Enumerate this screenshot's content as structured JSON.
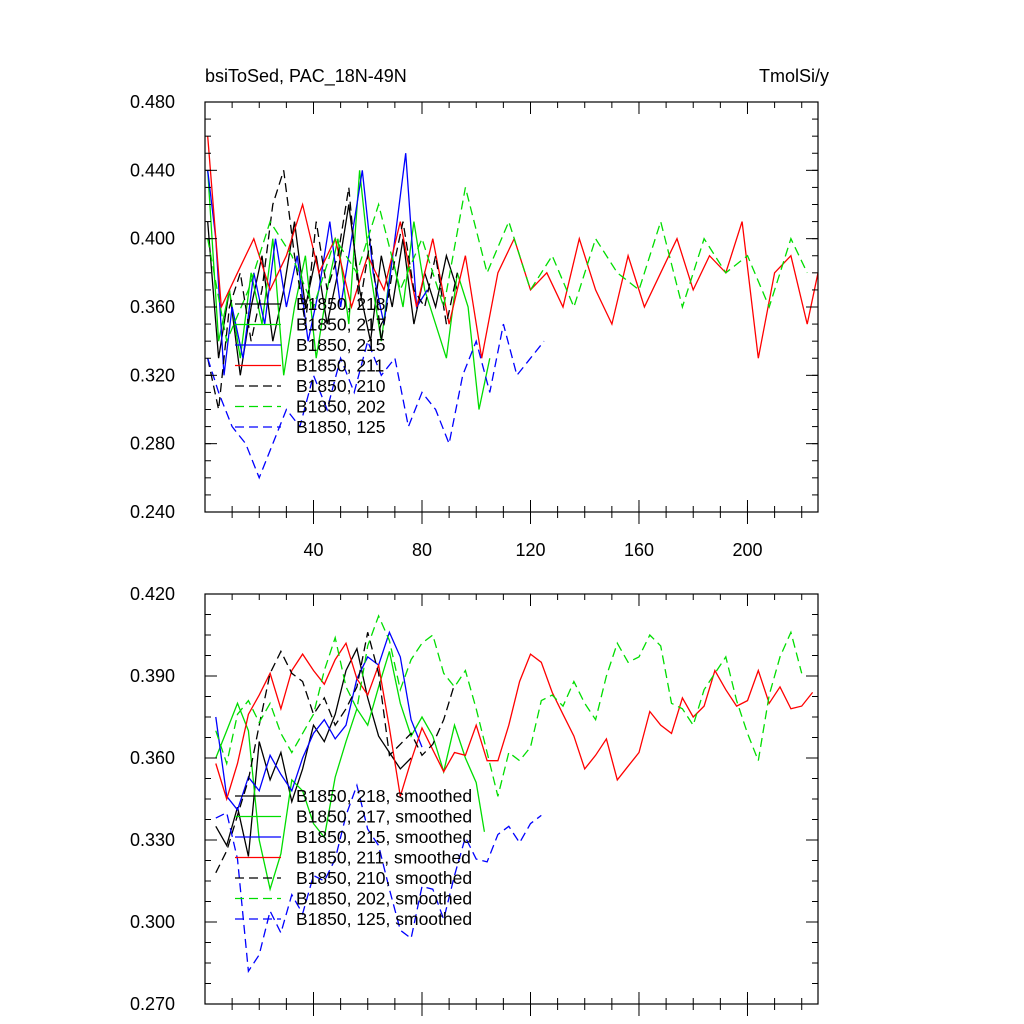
{
  "chart_data": [
    {
      "type": "line",
      "title_left": "bsiToSed, PAC_18N-49N",
      "title_right": "TmolSi/y",
      "xlabel": "",
      "ylabel": "",
      "xlim": [
        0,
        226
      ],
      "ylim": [
        0.24,
        0.48
      ],
      "xticks": [
        40,
        80,
        120,
        160,
        200
      ],
      "xtick_labels": [
        "40",
        "80",
        "120",
        "160",
        "200"
      ],
      "yticks": [
        0.24,
        0.28,
        0.32,
        0.36,
        0.4,
        0.44,
        0.48
      ],
      "ytick_labels": [
        "0.240",
        "0.280",
        "0.320",
        "0.360",
        "0.400",
        "0.440",
        "0.480"
      ],
      "grid": false,
      "legend_position": "bottom-left",
      "series": [
        {
          "name": "B1850, 218",
          "color": "#000000",
          "dash": "solid",
          "x": [
            1,
            5,
            9,
            13,
            17,
            21,
            25,
            29,
            33,
            37,
            41,
            45,
            49,
            53,
            57,
            61,
            65,
            69,
            73,
            77,
            81,
            85,
            89,
            93
          ],
          "y": [
            0.41,
            0.33,
            0.37,
            0.32,
            0.36,
            0.39,
            0.34,
            0.37,
            0.41,
            0.36,
            0.39,
            0.35,
            0.38,
            0.42,
            0.37,
            0.34,
            0.39,
            0.36,
            0.4,
            0.35,
            0.38,
            0.36,
            0.39,
            0.37
          ]
        },
        {
          "name": "B1850, 217",
          "color": "#00dd00",
          "dash": "solid",
          "x": [
            1,
            5,
            9,
            13,
            17,
            21,
            25,
            29,
            33,
            37,
            41,
            45,
            49,
            53,
            57,
            61,
            65,
            69,
            73,
            77,
            81,
            85,
            89,
            93,
            97,
            101,
            105
          ],
          "y": [
            0.44,
            0.34,
            0.37,
            0.33,
            0.38,
            0.35,
            0.4,
            0.32,
            0.36,
            0.39,
            0.33,
            0.37,
            0.4,
            0.35,
            0.44,
            0.38,
            0.34,
            0.39,
            0.36,
            0.41,
            0.37,
            0.35,
            0.33,
            0.38,
            0.36,
            0.3,
            0.33
          ]
        },
        {
          "name": "B1850, 215",
          "color": "#0000ff",
          "dash": "solid",
          "x": [
            1,
            4,
            7,
            10,
            14,
            18,
            22,
            26,
            30,
            34,
            38,
            42,
            46,
            50,
            54,
            58,
            62,
            66,
            70,
            74,
            78,
            82
          ],
          "y": [
            0.44,
            0.4,
            0.32,
            0.36,
            0.33,
            0.38,
            0.35,
            0.4,
            0.36,
            0.39,
            0.34,
            0.37,
            0.41,
            0.36,
            0.4,
            0.44,
            0.38,
            0.35,
            0.4,
            0.45,
            0.36,
            0.37
          ]
        },
        {
          "name": "B1850, 211",
          "color": "#ff0000",
          "dash": "solid",
          "x": [
            1,
            6,
            12,
            18,
            24,
            30,
            36,
            42,
            48,
            54,
            60,
            66,
            72,
            78,
            84,
            90,
            96,
            102,
            108,
            114,
            120,
            126,
            132,
            138,
            144,
            150,
            156,
            162,
            168,
            174,
            180,
            186,
            192,
            198,
            204,
            210,
            216,
            222,
            226
          ],
          "y": [
            0.46,
            0.36,
            0.38,
            0.4,
            0.37,
            0.39,
            0.42,
            0.38,
            0.4,
            0.36,
            0.39,
            0.37,
            0.41,
            0.36,
            0.4,
            0.35,
            0.39,
            0.33,
            0.38,
            0.4,
            0.37,
            0.38,
            0.36,
            0.4,
            0.37,
            0.35,
            0.39,
            0.36,
            0.38,
            0.4,
            0.37,
            0.39,
            0.38,
            0.41,
            0.33,
            0.38,
            0.39,
            0.35,
            0.38
          ]
        },
        {
          "name": "B1850, 210",
          "color": "#000000",
          "dash": "dashed",
          "x": [
            1,
            5,
            9,
            13,
            17,
            21,
            25,
            29,
            33,
            37,
            41,
            45,
            49,
            53,
            57,
            61,
            65,
            69,
            73,
            77,
            81,
            85,
            89,
            93
          ],
          "y": [
            0.33,
            0.3,
            0.36,
            0.38,
            0.34,
            0.37,
            0.42,
            0.44,
            0.39,
            0.35,
            0.41,
            0.37,
            0.39,
            0.43,
            0.36,
            0.4,
            0.34,
            0.38,
            0.41,
            0.37,
            0.36,
            0.39,
            0.35,
            0.38
          ]
        },
        {
          "name": "B1850, 202",
          "color": "#00dd00",
          "dash": "dashed",
          "x": [
            1,
            8,
            16,
            24,
            32,
            40,
            48,
            56,
            64,
            72,
            80,
            88,
            96,
            104,
            112,
            120,
            128,
            136,
            144,
            152,
            160,
            168,
            176,
            184,
            192,
            200,
            208,
            216,
            222
          ],
          "y": [
            0.4,
            0.34,
            0.37,
            0.41,
            0.39,
            0.36,
            0.4,
            0.38,
            0.42,
            0.37,
            0.4,
            0.36,
            0.43,
            0.38,
            0.41,
            0.37,
            0.39,
            0.36,
            0.4,
            0.38,
            0.37,
            0.41,
            0.36,
            0.4,
            0.38,
            0.39,
            0.36,
            0.4,
            0.38
          ]
        },
        {
          "name": "B1850, 125",
          "color": "#0000ff",
          "dash": "dashed",
          "x": [
            1,
            5,
            10,
            15,
            20,
            25,
            30,
            35,
            40,
            45,
            50,
            55,
            60,
            65,
            70,
            75,
            80,
            85,
            90,
            95,
            100,
            105,
            110,
            115,
            120,
            125
          ],
          "y": [
            0.33,
            0.31,
            0.29,
            0.28,
            0.26,
            0.28,
            0.3,
            0.29,
            0.32,
            0.3,
            0.33,
            0.31,
            0.34,
            0.32,
            0.33,
            0.29,
            0.31,
            0.3,
            0.28,
            0.32,
            0.34,
            0.31,
            0.35,
            0.32,
            0.33,
            0.34
          ]
        }
      ]
    },
    {
      "type": "line",
      "title_left": "",
      "title_right": "",
      "xlabel": "",
      "ylabel": "",
      "xlim": [
        0,
        226
      ],
      "ylim": [
        0.27,
        0.42
      ],
      "xticks": [
        40,
        80,
        120,
        160,
        200
      ],
      "xtick_labels": [],
      "yticks": [
        0.27,
        0.3,
        0.33,
        0.36,
        0.39,
        0.42
      ],
      "ytick_labels": [
        "0.270",
        "0.300",
        "0.330",
        "0.360",
        "0.390",
        "0.420"
      ],
      "grid": false,
      "legend_position": "bottom-left",
      "series": [
        {
          "name": "B1850, 218, smoothed",
          "color": "#000000",
          "dash": "solid",
          "x": [
            4,
            8,
            12,
            16,
            20,
            24,
            28,
            32,
            36,
            40,
            44,
            48,
            52,
            56,
            60,
            64,
            68,
            72,
            76
          ],
          "y": [
            0.335,
            0.328,
            0.342,
            0.324,
            0.366,
            0.352,
            0.362,
            0.344,
            0.356,
            0.372,
            0.366,
            0.376,
            0.392,
            0.4,
            0.382,
            0.368,
            0.362,
            0.356,
            0.36
          ]
        },
        {
          "name": "B1850, 217, smoothed",
          "color": "#00dd00",
          "dash": "solid",
          "x": [
            4,
            8,
            12,
            16,
            20,
            24,
            28,
            32,
            36,
            40,
            44,
            48,
            52,
            56,
            60,
            64,
            68,
            72,
            76,
            80,
            84,
            88,
            92,
            96,
            100,
            103
          ],
          "y": [
            0.36,
            0.37,
            0.38,
            0.37,
            0.33,
            0.312,
            0.325,
            0.352,
            0.348,
            0.336,
            0.331,
            0.353,
            0.366,
            0.378,
            0.372,
            0.386,
            0.399,
            0.38,
            0.368,
            0.375,
            0.368,
            0.355,
            0.372,
            0.36,
            0.351,
            0.333
          ]
        },
        {
          "name": "B1850, 215, smoothed",
          "color": "#0000ff",
          "dash": "solid",
          "x": [
            4,
            8,
            12,
            16,
            20,
            24,
            28,
            32,
            36,
            40,
            44,
            48,
            52,
            56,
            60,
            64,
            68,
            72,
            76,
            80
          ],
          "y": [
            0.375,
            0.346,
            0.341,
            0.353,
            0.348,
            0.361,
            0.354,
            0.348,
            0.36,
            0.369,
            0.374,
            0.367,
            0.372,
            0.389,
            0.397,
            0.394,
            0.406,
            0.397,
            0.374,
            0.364
          ]
        },
        {
          "name": "B1850, 211, smoothed",
          "color": "#ff0000",
          "dash": "solid",
          "x": [
            4,
            8,
            12,
            16,
            20,
            24,
            28,
            32,
            36,
            40,
            44,
            48,
            52,
            56,
            60,
            64,
            68,
            72,
            76,
            80,
            84,
            88,
            92,
            96,
            100,
            104,
            108,
            112,
            116,
            120,
            124,
            128,
            132,
            136,
            140,
            144,
            148,
            152,
            156,
            160,
            164,
            168,
            172,
            176,
            180,
            184,
            188,
            192,
            196,
            200,
            204,
            208,
            212,
            216,
            220,
            224
          ],
          "y": [
            0.358,
            0.345,
            0.358,
            0.376,
            0.383,
            0.391,
            0.378,
            0.392,
            0.398,
            0.392,
            0.387,
            0.396,
            0.402,
            0.389,
            0.383,
            0.394,
            0.371,
            0.346,
            0.359,
            0.371,
            0.363,
            0.355,
            0.362,
            0.361,
            0.372,
            0.359,
            0.359,
            0.372,
            0.388,
            0.398,
            0.395,
            0.384,
            0.376,
            0.368,
            0.356,
            0.361,
            0.367,
            0.352,
            0.357,
            0.362,
            0.377,
            0.372,
            0.369,
            0.382,
            0.375,
            0.379,
            0.392,
            0.385,
            0.379,
            0.381,
            0.392,
            0.38,
            0.386,
            0.378,
            0.379,
            0.384
          ]
        },
        {
          "name": "B1850, 210, smoothed",
          "color": "#000000",
          "dash": "dashed",
          "x": [
            4,
            8,
            12,
            16,
            20,
            24,
            28,
            32,
            36,
            40,
            44,
            48,
            52,
            56,
            60,
            64,
            68,
            72,
            76,
            80,
            84,
            88,
            92
          ],
          "y": [
            0.318,
            0.326,
            0.339,
            0.352,
            0.372,
            0.391,
            0.399,
            0.391,
            0.388,
            0.376,
            0.382,
            0.372,
            0.378,
            0.386,
            0.406,
            0.391,
            0.361,
            0.365,
            0.369,
            0.361,
            0.365,
            0.374,
            0.387
          ]
        },
        {
          "name": "B1850, 202, smoothed",
          "color": "#00dd00",
          "dash": "dashed",
          "x": [
            4,
            8,
            12,
            16,
            20,
            24,
            28,
            32,
            36,
            40,
            44,
            48,
            52,
            56,
            60,
            64,
            68,
            72,
            76,
            80,
            84,
            88,
            92,
            96,
            100,
            104,
            108,
            112,
            116,
            120,
            124,
            128,
            132,
            136,
            140,
            144,
            148,
            152,
            156,
            160,
            164,
            168,
            172,
            176,
            180,
            184,
            188,
            192,
            196,
            200,
            204,
            208,
            212,
            216,
            220
          ],
          "y": [
            0.37,
            0.358,
            0.376,
            0.381,
            0.373,
            0.38,
            0.369,
            0.362,
            0.369,
            0.376,
            0.392,
            0.404,
            0.386,
            0.378,
            0.401,
            0.412,
            0.403,
            0.385,
            0.396,
            0.402,
            0.405,
            0.391,
            0.386,
            0.392,
            0.378,
            0.362,
            0.346,
            0.362,
            0.359,
            0.364,
            0.381,
            0.383,
            0.379,
            0.388,
            0.38,
            0.374,
            0.39,
            0.402,
            0.395,
            0.397,
            0.405,
            0.401,
            0.38,
            0.378,
            0.372,
            0.385,
            0.391,
            0.397,
            0.381,
            0.369,
            0.359,
            0.383,
            0.397,
            0.406,
            0.391
          ]
        },
        {
          "name": "B1850, 125, smoothed",
          "color": "#0000ff",
          "dash": "dashed",
          "x": [
            4,
            8,
            12,
            16,
            20,
            24,
            28,
            32,
            36,
            40,
            44,
            48,
            52,
            56,
            60,
            64,
            68,
            72,
            76,
            80,
            84,
            88,
            92,
            96,
            100,
            104,
            108,
            112,
            116,
            120,
            124
          ],
          "y": [
            0.338,
            0.34,
            0.323,
            0.282,
            0.288,
            0.304,
            0.296,
            0.31,
            0.303,
            0.317,
            0.315,
            0.323,
            0.339,
            0.35,
            0.334,
            0.328,
            0.312,
            0.297,
            0.294,
            0.313,
            0.312,
            0.301,
            0.317,
            0.331,
            0.323,
            0.322,
            0.332,
            0.335,
            0.329,
            0.336,
            0.339
          ]
        }
      ]
    }
  ]
}
